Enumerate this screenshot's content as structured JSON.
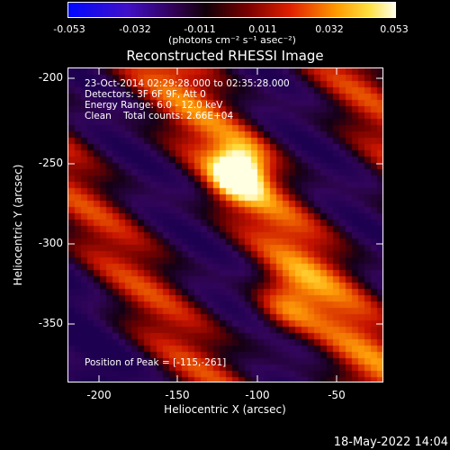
{
  "colorbar": {
    "ticks": [
      "-0.053",
      "-0.032",
      "-0.011",
      "0.011",
      "0.032",
      "0.053"
    ],
    "units": "(photons cm⁻² s⁻¹ asec⁻²)"
  },
  "title": "Reconstructed RHESSI Image",
  "overlay": {
    "time_range": "23-Oct-2014 02:29:28.000 to 02:35:28.000",
    "detectors": "Detectors: 3F 6F 9F, Att 0",
    "energy": "Energy Range: 6.0 - 12.0 keV",
    "clean": "Clean    Total counts: 2.66E+04",
    "peak": "Position of Peak = [-115,-261]"
  },
  "axes": {
    "xlabel": "Heliocentric X (arcsec)",
    "ylabel": "Heliocentric Y (arcsec)",
    "xticks": [
      "-200",
      "-150",
      "-100",
      "-50"
    ],
    "yticks": [
      "-200",
      "-250",
      "-300",
      "-350"
    ],
    "xlim": [
      -215,
      -27
    ],
    "ylim": [
      -388,
      -201
    ]
  },
  "peak": {
    "x": -115,
    "y": -261
  },
  "datestamp": "18-May-2022 14:04"
}
